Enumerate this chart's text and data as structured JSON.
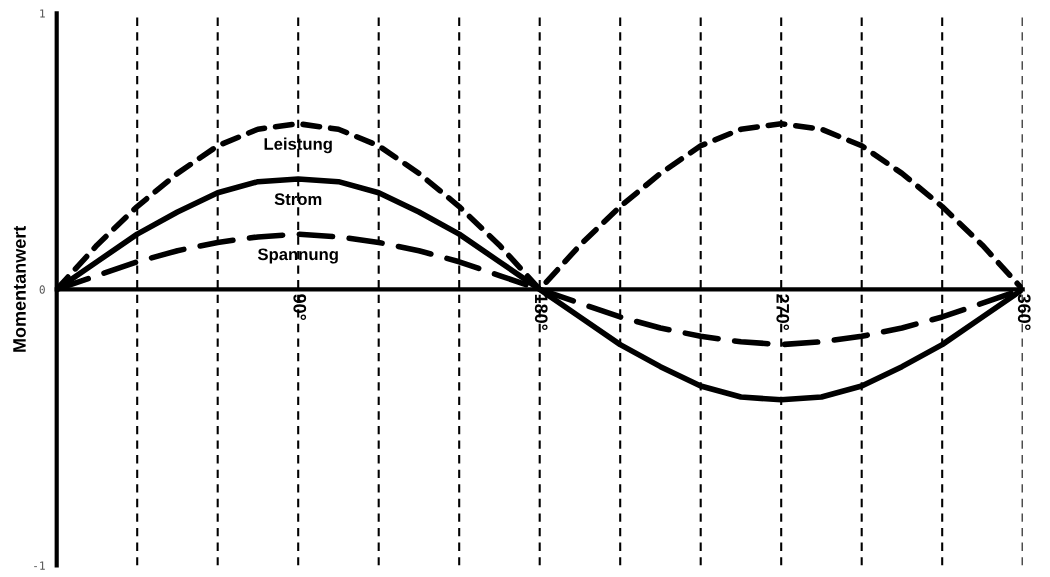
{
  "chart_data": {
    "type": "line",
    "ylabel": "Momentanwert",
    "x": [
      0,
      15,
      30,
      45,
      60,
      75,
      90,
      105,
      120,
      135,
      150,
      165,
      180,
      195,
      210,
      225,
      240,
      255,
      270,
      285,
      300,
      315,
      330,
      345,
      360
    ],
    "series": [
      {
        "name": "Leistung",
        "color": "#000000",
        "line_style": "dashed",
        "values": [
          0,
          0.16,
          0.3,
          0.42,
          0.52,
          0.58,
          0.6,
          0.58,
          0.52,
          0.42,
          0.3,
          0.16,
          0,
          0.16,
          0.3,
          0.42,
          0.52,
          0.58,
          0.6,
          0.58,
          0.52,
          0.42,
          0.3,
          0.16,
          0
        ]
      },
      {
        "name": "Strom",
        "color": "#000000",
        "line_style": "solid",
        "values": [
          0,
          0.1,
          0.2,
          0.28,
          0.35,
          0.39,
          0.4,
          0.39,
          0.35,
          0.28,
          0.2,
          0.1,
          0,
          -0.1,
          -0.2,
          -0.28,
          -0.35,
          -0.39,
          -0.4,
          -0.39,
          -0.35,
          -0.28,
          -0.2,
          -0.1,
          0
        ]
      },
      {
        "name": "Spannung",
        "color": "#000000",
        "line_style": "dashed",
        "values": [
          0,
          0.05,
          0.1,
          0.14,
          0.17,
          0.19,
          0.2,
          0.19,
          0.17,
          0.14,
          0.1,
          0.05,
          0,
          -0.05,
          -0.1,
          -0.14,
          -0.17,
          -0.19,
          -0.2,
          -0.19,
          -0.17,
          -0.14,
          -0.1,
          -0.05,
          0
        ]
      }
    ],
    "xlim": [
      0,
      360
    ],
    "ylim": [
      -1,
      1
    ],
    "xticks": [
      {
        "value": 30,
        "label": null
      },
      {
        "value": 60,
        "label": null
      },
      {
        "value": 90,
        "label": "90°"
      },
      {
        "value": 120,
        "label": null
      },
      {
        "value": 150,
        "label": null
      },
      {
        "value": 180,
        "label": "180°"
      },
      {
        "value": 210,
        "label": null
      },
      {
        "value": 240,
        "label": null
      },
      {
        "value": 270,
        "label": "270°"
      },
      {
        "value": 300,
        "label": null
      },
      {
        "value": 330,
        "label": null
      },
      {
        "value": 360,
        "label": "360°"
      }
    ],
    "yticks": [
      -1,
      0,
      1
    ],
    "grid": "x",
    "legend": false,
    "marker": "none"
  }
}
